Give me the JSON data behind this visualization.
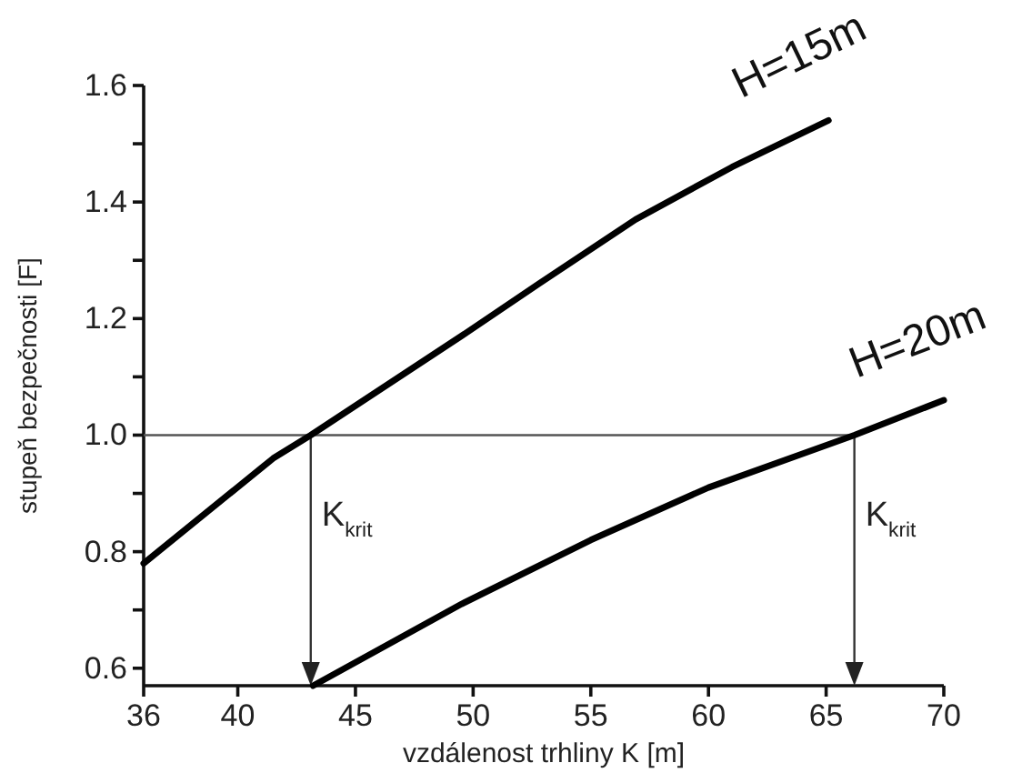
{
  "chart_data": {
    "type": "line",
    "xlabel": "vzdálenost trhliny K [m]",
    "ylabel": "stupeň bezpečnosti [F]",
    "xlim": [
      36,
      70
    ],
    "xticks": [
      36,
      40,
      45,
      50,
      55,
      60,
      65,
      70
    ],
    "ylim": [
      0.57,
      1.6
    ],
    "yticks": [
      0.6,
      {
        "value": 0.7,
        "label": null
      },
      0.8,
      {
        "value": 0.9,
        "label": null
      },
      {
        "value": 1.0,
        "label": "1.0"
      },
      {
        "value": 1.1,
        "label": null
      },
      1.2,
      {
        "value": 1.3,
        "label": null
      },
      1.4,
      {
        "value": 1.5,
        "label": null
      },
      1.6
    ],
    "series": [
      {
        "name": "H=15m",
        "color": "#000000",
        "x": [
          36,
          41.5,
          43.1,
          49.5,
          52.8,
          56.9,
          61,
          65.1
        ],
        "values": [
          0.78,
          0.96,
          1.0,
          1.17,
          1.26,
          1.37,
          1.46,
          1.54
        ]
      },
      {
        "name": "H=20m",
        "color": "#000000",
        "x": [
          43.2,
          49.5,
          55,
          60,
          66.2,
          70
        ],
        "values": [
          0.57,
          0.71,
          0.82,
          0.91,
          1.0,
          1.06
        ]
      }
    ],
    "ref_lines": [
      {
        "axis": "y",
        "value": 1.0,
        "label": null,
        "color": "#555555"
      }
    ],
    "annotations": [
      {
        "text": "K$_{krit}$",
        "x": 43.1,
        "y": 1.0
      },
      {
        "text": "K$_{krit}$",
        "x": 66.2,
        "y": 1.0
      }
    ],
    "grid": false,
    "legend": false,
    "marker": "none",
    "line_style": "solid"
  }
}
